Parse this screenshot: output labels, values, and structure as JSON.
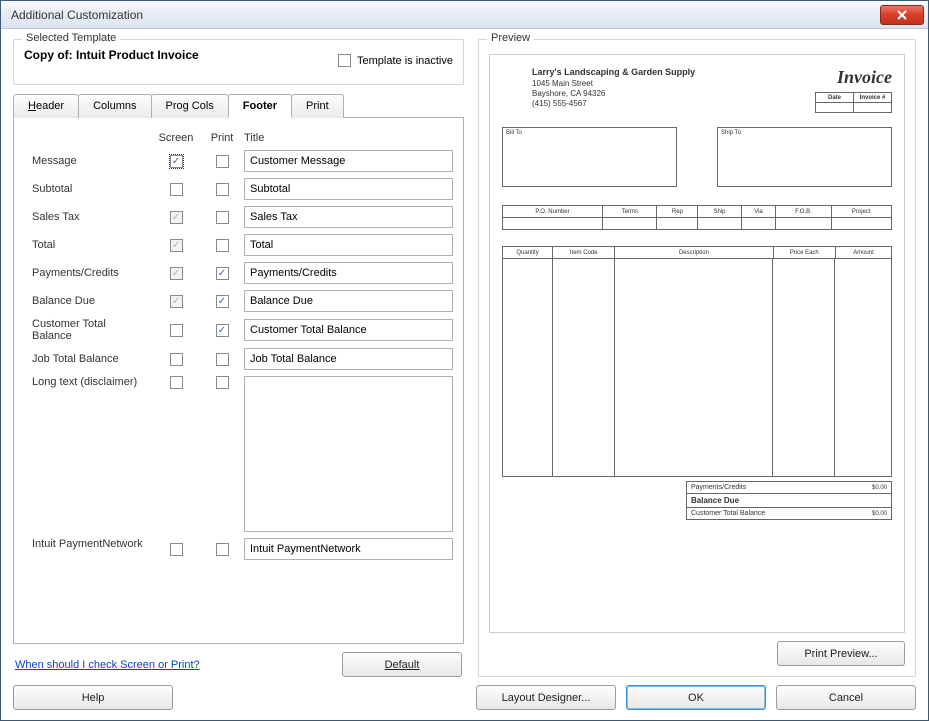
{
  "window": {
    "title": "Additional Customization"
  },
  "template": {
    "selected_label": "Selected Template",
    "name": "Copy of: Intuit Product Invoice",
    "inactive_label": "Template is inactive",
    "inactive_checked": false
  },
  "tabs": [
    {
      "label": "Header",
      "active": false,
      "u": 0
    },
    {
      "label": "Columns",
      "active": false,
      "u": -1
    },
    {
      "label": "Prog Cols",
      "active": false,
      "u": -1
    },
    {
      "label": "Footer",
      "active": true,
      "u": -1
    },
    {
      "label": "Print",
      "active": false,
      "u": -1
    }
  ],
  "columns": {
    "field": "",
    "screen": "Screen",
    "print": "Print",
    "title": "Title"
  },
  "rows": [
    {
      "label": "Message",
      "screen": true,
      "screen_enabled": true,
      "print": false,
      "print_enabled": true,
      "title": "Customer Message",
      "tall": false,
      "focused": true
    },
    {
      "label": "Subtotal",
      "screen": false,
      "screen_enabled": true,
      "print": false,
      "print_enabled": true,
      "title": "Subtotal",
      "tall": false
    },
    {
      "label": "Sales Tax",
      "screen": true,
      "screen_enabled": false,
      "print": false,
      "print_enabled": true,
      "title": "Sales Tax",
      "tall": false
    },
    {
      "label": "Total",
      "screen": true,
      "screen_enabled": false,
      "print": false,
      "print_enabled": true,
      "title": "Total",
      "tall": false
    },
    {
      "label": "Payments/Credits",
      "screen": true,
      "screen_enabled": false,
      "print": true,
      "print_enabled": true,
      "title": "Payments/Credits",
      "tall": false
    },
    {
      "label": "Balance Due",
      "screen": true,
      "screen_enabled": false,
      "print": true,
      "print_enabled": true,
      "title": "Balance Due",
      "tall": false
    },
    {
      "label": "Customer Total Balance",
      "screen": false,
      "screen_enabled": true,
      "print": true,
      "print_enabled": true,
      "title": "Customer Total Balance",
      "tall": false
    },
    {
      "label": "Job Total Balance",
      "screen": false,
      "screen_enabled": true,
      "print": false,
      "print_enabled": true,
      "title": "Job Total Balance",
      "tall": false
    },
    {
      "label": "Long text (disclaimer)",
      "screen": false,
      "screen_enabled": true,
      "print": false,
      "print_enabled": true,
      "title": "",
      "tall": true
    },
    {
      "label": "Intuit PaymentNetwork",
      "screen": false,
      "screen_enabled": true,
      "print": false,
      "print_enabled": true,
      "title": "Intuit PaymentNetwork",
      "tall": false
    }
  ],
  "help_link": "When should I check Screen or Print?",
  "buttons": {
    "default": "Default",
    "help": "Help",
    "layout": "Layout Designer...",
    "ok": "OK",
    "cancel": "Cancel",
    "print_preview": "Print Preview..."
  },
  "preview": {
    "label": "Preview",
    "company_name": "Larry's Landscaping & Garden Supply",
    "addr1": "1045 Main Street",
    "addr2": "Bayshore, CA 94326",
    "phone": "(415) 555-4567",
    "invoice_title": "Invoice",
    "dateinv": {
      "date": "Date",
      "invoice_no": "Invoice #"
    },
    "bill_to": "Bill To",
    "ship_to": "Ship To",
    "row_headers": [
      "P.O. Number",
      "Terms",
      "Rep",
      "Ship",
      "Via",
      "F.O.B.",
      "Project"
    ],
    "item_headers": [
      "Quantity",
      "Item Code",
      "Description",
      "Price Each",
      "Amount"
    ],
    "item_widths": [
      50,
      62,
      158,
      62,
      56
    ],
    "totals": [
      {
        "label": "Payments/Credits",
        "amount": "$0.00",
        "bold": false
      },
      {
        "label": "Balance Due",
        "amount": "",
        "bold": true
      },
      {
        "label": "Customer Total Balance",
        "amount": "$0.00",
        "bold": false
      }
    ]
  },
  "colors": {
    "accent": "#3e8fd0",
    "border": "#b0b0b0",
    "check": "#3a67a6"
  }
}
